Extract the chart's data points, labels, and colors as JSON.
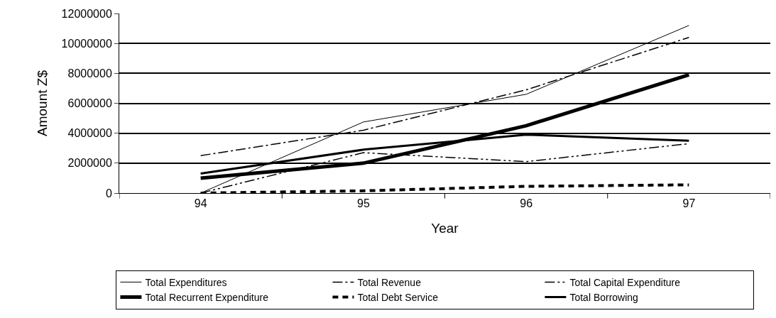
{
  "chart_data": {
    "type": "line",
    "xlabel": "Year",
    "ylabel": "Amount Z$",
    "categories": [
      "94",
      "95",
      "96",
      "97"
    ],
    "series": [
      {
        "name": "Total Expenditures",
        "color": "#000000",
        "line_style": "solid",
        "values": [
          0,
          4750000,
          6600000,
          11200000
        ]
      },
      {
        "name": "Total Revenue",
        "color": "#000000",
        "line_style": "dashdot",
        "values": [
          2500000,
          4200000,
          6900000,
          10400000
        ]
      },
      {
        "name": "Total Capital Expenditure",
        "color": "#000000",
        "line_style": "dashdotdot",
        "values": [
          0,
          2700000,
          2100000,
          3300000
        ]
      },
      {
        "name": "Total Recurrent Expenditure",
        "color": "#000000",
        "line_style": "solid",
        "values": [
          1000000,
          2000000,
          4500000,
          7900000
        ]
      },
      {
        "name": "Total Debt Service",
        "color": "#000000",
        "line_style": "dashed",
        "values": [
          0,
          150000,
          450000,
          550000
        ]
      },
      {
        "name": "Total Borrowing",
        "color": "#000000",
        "line_style": "solid",
        "values": [
          1300000,
          2900000,
          3900000,
          3500000
        ]
      }
    ],
    "ylim": [
      0,
      12000000
    ],
    "yticks": [
      0,
      2000000,
      4000000,
      6000000,
      8000000,
      10000000,
      12000000
    ],
    "grid": "y",
    "legend": "bottom",
    "marker": "none"
  }
}
